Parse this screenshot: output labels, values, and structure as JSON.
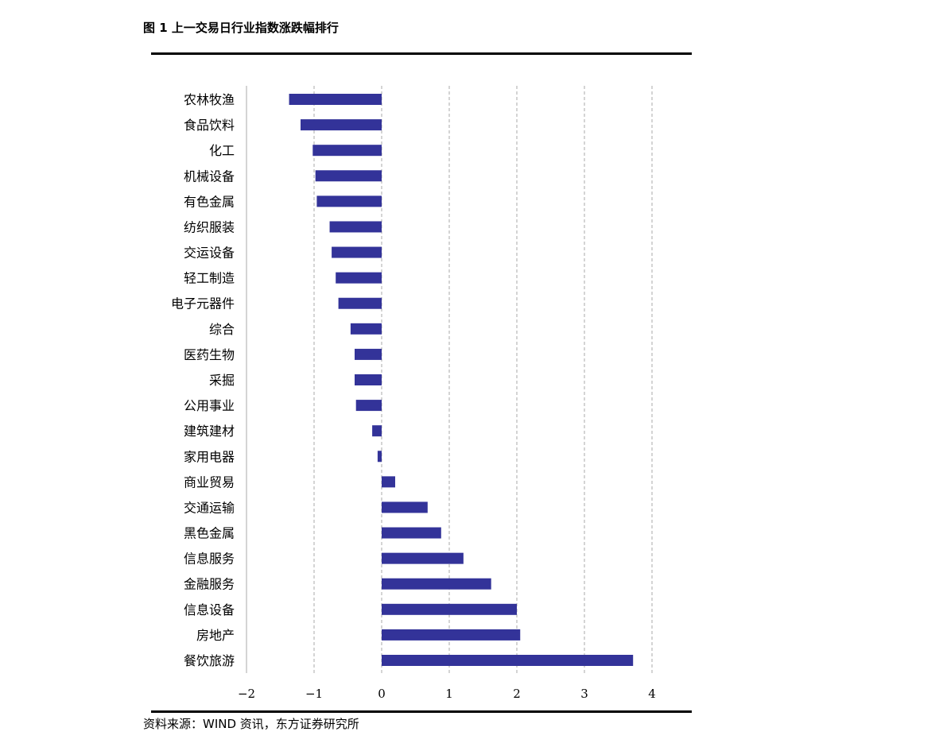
{
  "title": "图 1 上一交易日行业指数涨跌幅排行",
  "source": "资料来源：WIND 资讯，东方证券研究所",
  "chart_data": {
    "type": "bar",
    "orientation": "horizontal",
    "categories": [
      "农林牧渔",
      "食品饮料",
      "化工",
      "机械设备",
      "有色金属",
      "纺织服装",
      "交运设备",
      "轻工制造",
      "电子元器件",
      "综合",
      "医药生物",
      "采掘",
      "公用事业",
      "建筑建材",
      "家用电器",
      "商业贸易",
      "交通运输",
      "黑色金属",
      "信息服务",
      "金融服务",
      "信息设备",
      "房地产",
      "餐饮旅游"
    ],
    "values": [
      -1.37,
      -1.2,
      -1.02,
      -0.98,
      -0.96,
      -0.77,
      -0.74,
      -0.68,
      -0.64,
      -0.46,
      -0.4,
      -0.4,
      -0.38,
      -0.14,
      -0.06,
      0.2,
      0.68,
      0.88,
      1.21,
      1.62,
      2.0,
      2.05,
      3.72
    ],
    "xlim": [
      -2,
      4
    ],
    "xticks": [
      -2,
      -1,
      0,
      1,
      2,
      3,
      4
    ],
    "xtick_labels": [
      "−2",
      "−1",
      "0",
      "1",
      "2",
      "3",
      "4"
    ],
    "grid": "vertical dashed",
    "bar_color": "#333399",
    "title": "",
    "xlabel": "",
    "ylabel": ""
  }
}
